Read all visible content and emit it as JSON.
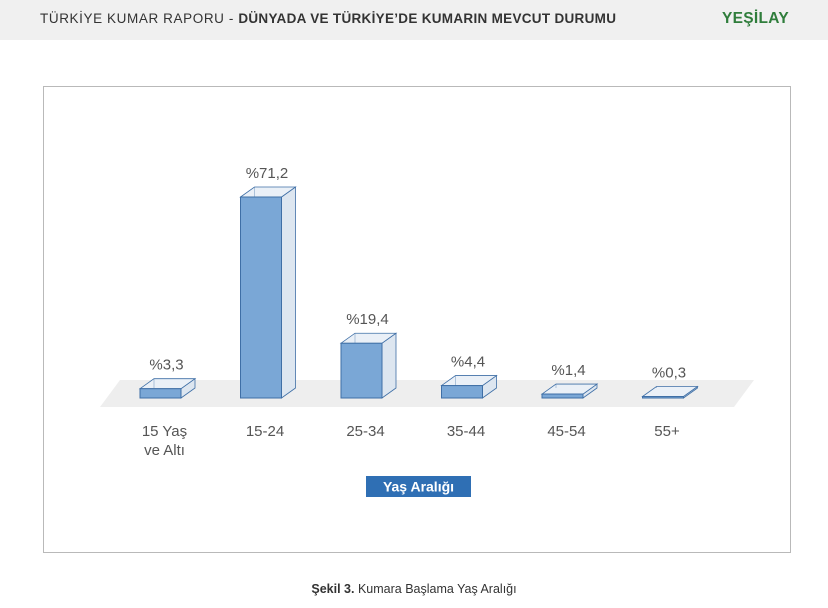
{
  "header": {
    "title_light": "TÜRKİYE KUMAR RAPORU - ",
    "title_bold": "DÜNYADA VE TÜRKİYE’DE KUMARIN MEVCUT DURUMU",
    "logo_text": "YEŞİLAY",
    "logo_icon": "crescent-icon"
  },
  "chart_data": {
    "type": "bar",
    "categories": [
      [
        "15 Yaş",
        "ve Altı"
      ],
      [
        "15-24"
      ],
      [
        "25-34"
      ],
      [
        "35-44"
      ],
      [
        "45-54"
      ],
      [
        "55+"
      ]
    ],
    "values": [
      3.3,
      71.2,
      19.4,
      4.4,
      1.4,
      0.3
    ],
    "value_labels": [
      "%3,3",
      "%71,2",
      "%19,4",
      "%4,4",
      "%1,4",
      "%0,3"
    ],
    "xlabel": "Yaş Aralığı",
    "ylabel": "",
    "ylim": [
      0,
      75
    ],
    "grid": false,
    "legend": "none",
    "style": "3d-bars",
    "colors": {
      "bar_front": "#7aa7d6",
      "bar_side": "#dde6f0",
      "bar_top": "#eaf0f7",
      "bar_edge": "#3f6fa6",
      "floor": "#eeeeee",
      "xlabel_bg": "#2f6fb4",
      "xlabel_text": "#ffffff"
    }
  },
  "caption": {
    "label": "Şekil 3.",
    "text": " Kumara Başlama Yaş Aralığı"
  }
}
